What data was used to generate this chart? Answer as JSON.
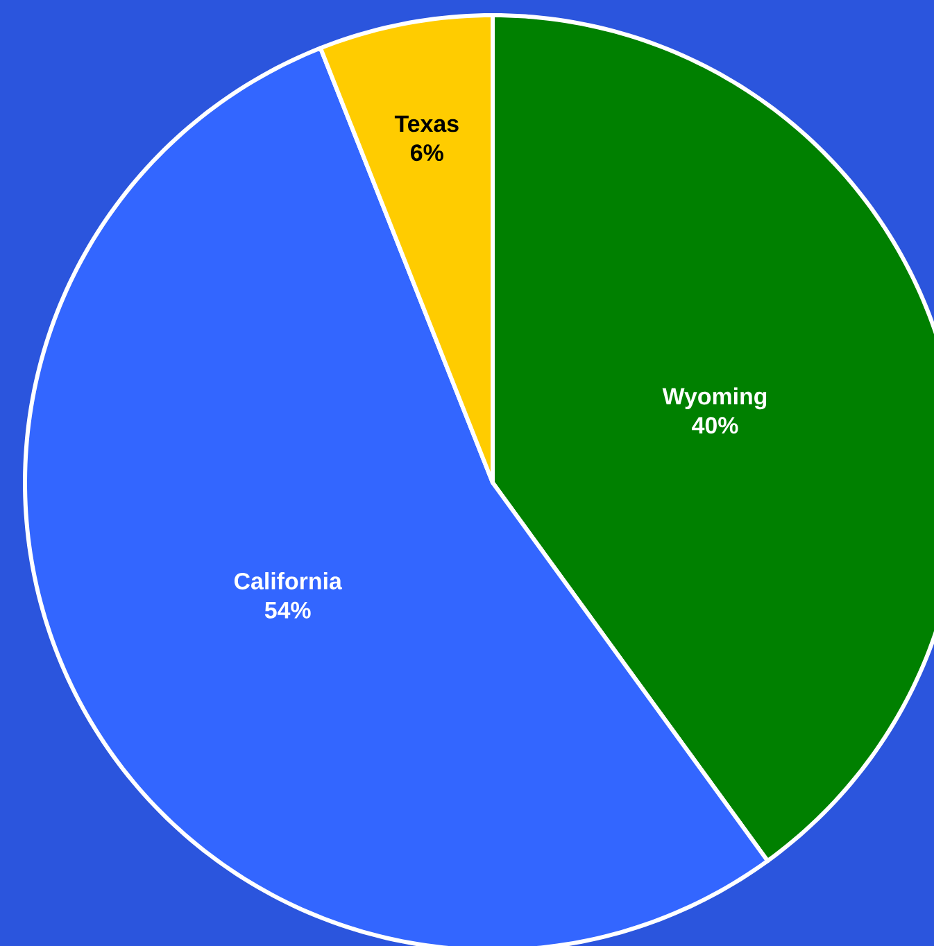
{
  "chart_data": {
    "type": "pie",
    "categories": [
      "Wyoming",
      "California",
      "Texas"
    ],
    "values": [
      40,
      54,
      6
    ],
    "colors": [
      "#008000",
      "#3366ff",
      "#ffcc00"
    ],
    "value_labels": [
      "40%",
      "54%",
      "6%"
    ]
  }
}
